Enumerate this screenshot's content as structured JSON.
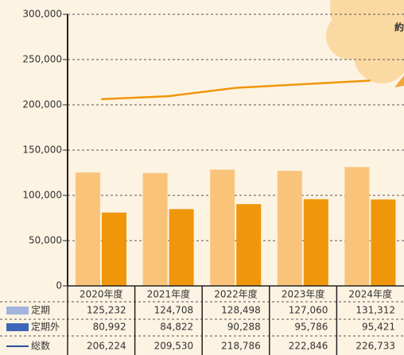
{
  "chart_data": {
    "type": "bar",
    "annotation": "約",
    "categories": [
      "2020年度",
      "2021年度",
      "2022年度",
      "2023年度",
      "2024年度"
    ],
    "series": [
      {
        "name": "定期",
        "type": "bar",
        "color": "#f9c47a",
        "legend_color": "#a3b5de",
        "values": [
          125232,
          124708,
          128498,
          127060,
          131312
        ],
        "value_labels": [
          "125,232",
          "124,708",
          "128,498",
          "127,060",
          "131,312"
        ]
      },
      {
        "name": "定期外",
        "type": "bar",
        "color": "#f0960a",
        "legend_color": "#3d66b8",
        "values": [
          80992,
          84822,
          90288,
          95786,
          95421
        ],
        "value_labels": [
          "80,992",
          "84,822",
          "90,288",
          "95,786",
          "95,421"
        ]
      },
      {
        "name": "総数",
        "type": "line",
        "color": "#f0960a",
        "legend_color": "#2f4f9a",
        "values": [
          206224,
          209530,
          218786,
          222846,
          226733
        ],
        "value_labels": [
          "206,224",
          "209,530",
          "218,786",
          "222,846",
          "226,733"
        ]
      }
    ],
    "ylim": [
      0,
      300000
    ],
    "yticks": [
      0,
      {
        "value": 50000,
        "label": "50,000"
      },
      {
        "value": 100000,
        "label": "100,000"
      },
      {
        "value": 150000,
        "label": "150,000"
      },
      {
        "value": 200000,
        "label": "200,000"
      },
      {
        "value": 250000,
        "label": "250,000"
      },
      {
        "value": 300000,
        "label": "300,000"
      }
    ],
    "grid": true
  }
}
